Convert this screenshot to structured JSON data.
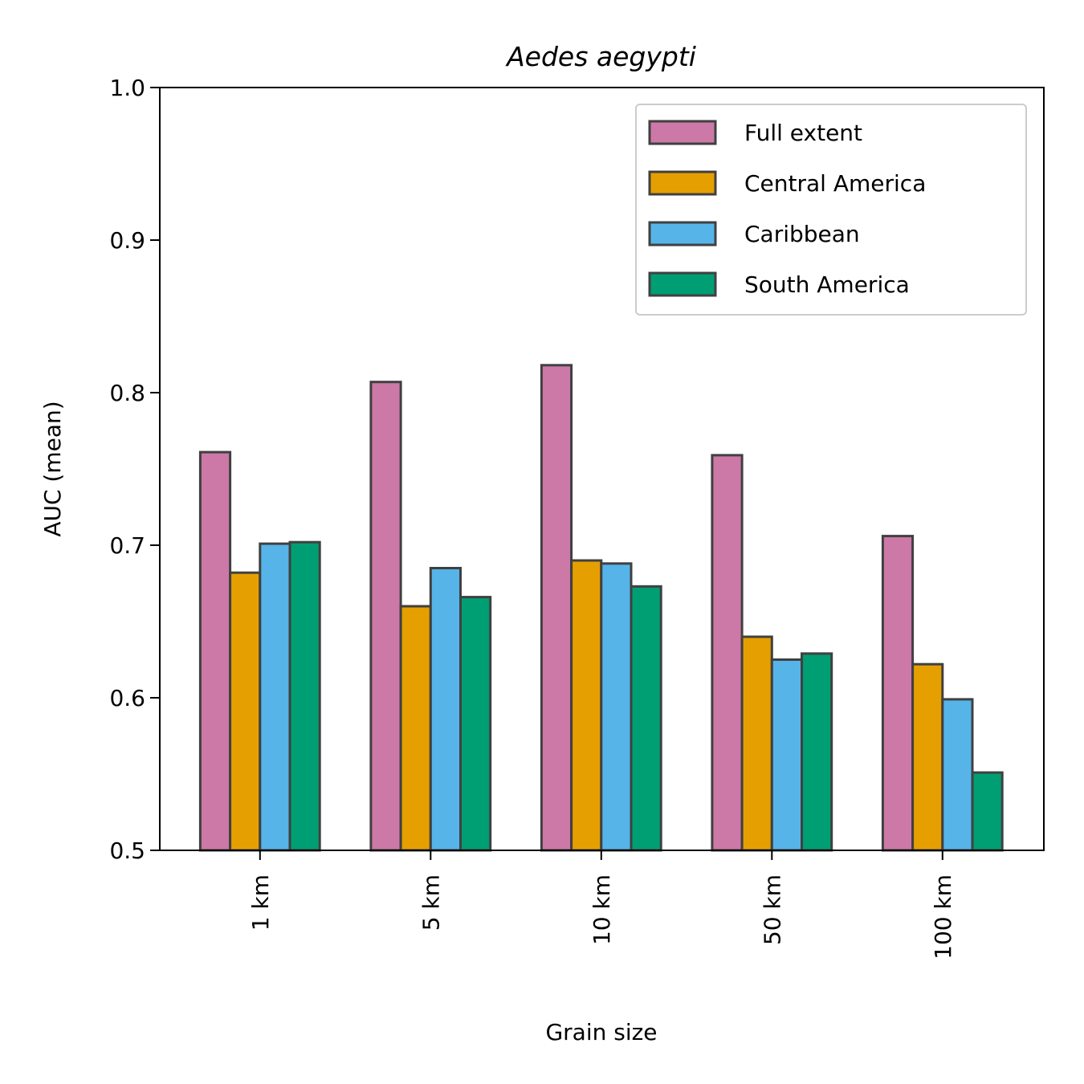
{
  "chart_data": {
    "type": "bar",
    "title": "Aedes aegypti",
    "xlabel": "Grain size",
    "ylabel": "AUC (mean)",
    "ylim": [
      0.5,
      1.0
    ],
    "yticks": [
      "0.5",
      "0.6",
      "0.7",
      "0.8",
      "0.9",
      "1.0"
    ],
    "categories": [
      "1 km",
      "5 km",
      "10 km",
      "50 km",
      "100 km"
    ],
    "series": [
      {
        "name": "Full extent",
        "color": "#cc79a7",
        "values": [
          0.761,
          0.807,
          0.818,
          0.759,
          0.706
        ]
      },
      {
        "name": "Central America",
        "color": "#e69f00",
        "values": [
          0.682,
          0.66,
          0.69,
          0.64,
          0.622
        ]
      },
      {
        "name": "Caribbean",
        "color": "#56b4e9",
        "values": [
          0.701,
          0.685,
          0.688,
          0.625,
          0.599
        ]
      },
      {
        "name": "South America",
        "color": "#009e73",
        "values": [
          0.702,
          0.666,
          0.673,
          0.629,
          0.551
        ]
      }
    ],
    "legend": "top-right",
    "grid": false,
    "edge_color": "#404040"
  }
}
